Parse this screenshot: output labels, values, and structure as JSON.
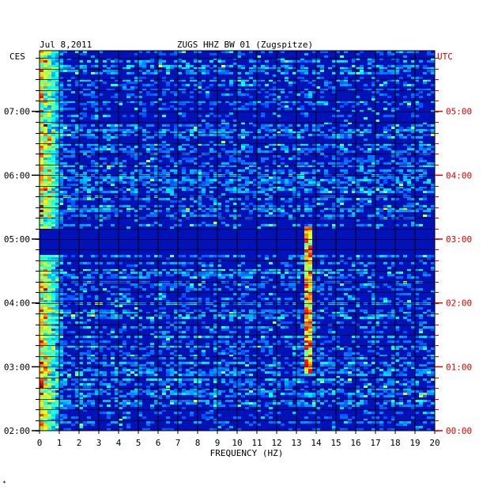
{
  "chart_data": {
    "type": "heatmap",
    "date": "Jul 8,2011",
    "title": "ZUGS HHZ BW 01 (Zugspitze)",
    "xlabel": "FREQUENCY (HZ)",
    "left_axis_label": "CES",
    "right_axis_label": "UTC",
    "xlim": [
      0,
      20
    ],
    "x_ticks": [
      "0",
      "1",
      "2",
      "3",
      "4",
      "5",
      "6",
      "7",
      "8",
      "9",
      "10",
      "11",
      "12",
      "13",
      "14",
      "15",
      "16",
      "17",
      "18",
      "19",
      "20"
    ],
    "y_range_hours": [
      2.0,
      7.95
    ],
    "left_ticks": [
      {
        "hour": 7,
        "label": "07:00"
      },
      {
        "hour": 6,
        "label": "06:00"
      },
      {
        "hour": 5,
        "label": "05:00"
      },
      {
        "hour": 4,
        "label": "04:00"
      },
      {
        "hour": 3,
        "label": "03:00"
      },
      {
        "hour": 2,
        "label": "02:00"
      }
    ],
    "right_ticks": [
      {
        "hour": 7,
        "label": "05:00"
      },
      {
        "hour": 6,
        "label": "04:00"
      },
      {
        "hour": 5,
        "label": "03:00"
      },
      {
        "hour": 4,
        "label": "02:00"
      },
      {
        "hour": 3,
        "label": "01:00"
      },
      {
        "hour": 2,
        "label": "00:00"
      }
    ],
    "grid": true,
    "colors": {
      "background": "#ffffff",
      "plot_bg": "#0012b8",
      "quiet_band": "#000c8c",
      "grid": "#000000",
      "left_axis": "#000000",
      "right_axis": "#dd0000"
    },
    "features": [
      {
        "name": "low-frequency energy",
        "freq_hz": [
          0.0,
          1.2
        ],
        "hours": [
          2.0,
          7.95
        ],
        "level": 0.8
      },
      {
        "name": "narrowband line",
        "freq_hz": [
          13.4,
          13.7
        ],
        "hours": [
          2.9,
          5.2
        ],
        "level": 0.95
      },
      {
        "name": "quiet interval",
        "freq_hz": [
          0,
          20
        ],
        "hours": [
          4.78,
          5.18
        ],
        "level": 0.05
      }
    ]
  },
  "footer_mark": "*"
}
